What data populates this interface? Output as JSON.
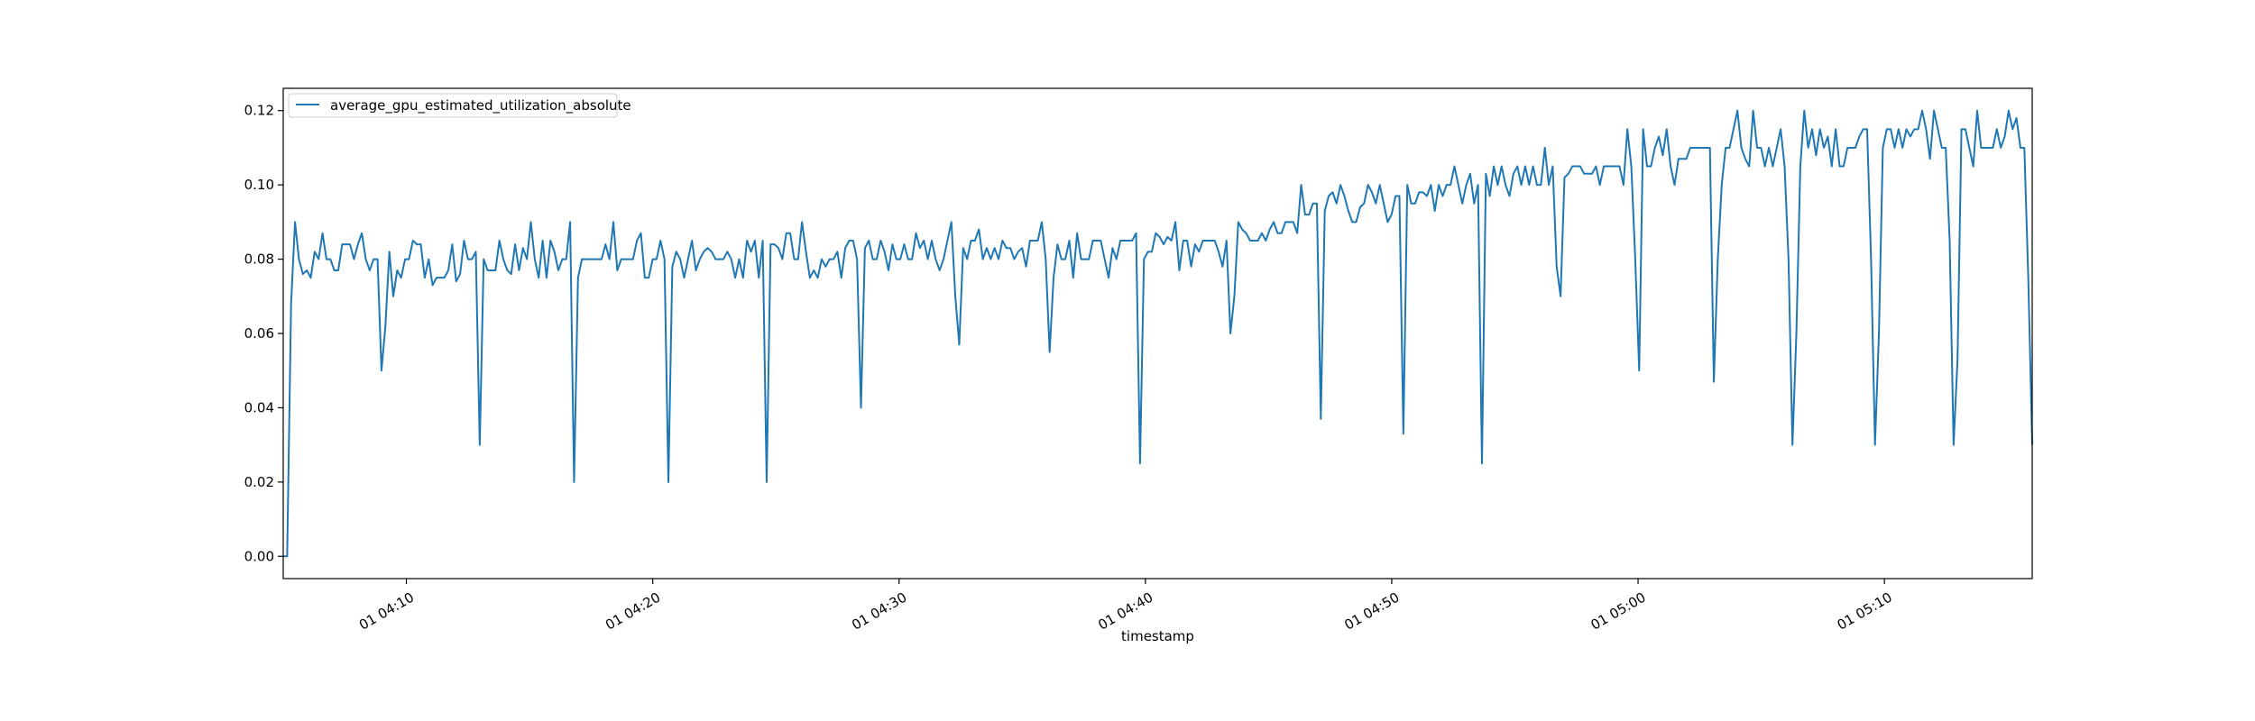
{
  "chart_data": {
    "type": "line",
    "title": "",
    "xlabel": "timestamp",
    "ylabel": "",
    "x_start": "01 04:05",
    "x_end": "01 05:16",
    "xlim": [
      "01 04:05",
      "01 05:16"
    ],
    "ylim": [
      -0.006,
      0.126
    ],
    "x_ticks": [
      "01 04:10",
      "01 04:20",
      "01 04:30",
      "01 04:40",
      "01 04:50",
      "01 05:00",
      "01 05:10"
    ],
    "y_ticks": [
      "0.00",
      "0.02",
      "0.04",
      "0.06",
      "0.08",
      "0.10",
      "0.12"
    ],
    "legend_position": "top-left",
    "grid": false,
    "line_color": "#1f77b4",
    "series": [
      {
        "name": "average_gpu_estimated_utilization_absolute",
        "values": [
          0.0,
          0.0,
          0.068,
          0.09,
          0.08,
          0.076,
          0.077,
          0.075,
          0.082,
          0.08,
          0.087,
          0.08,
          0.08,
          0.077,
          0.077,
          0.084,
          0.084,
          0.084,
          0.08,
          0.084,
          0.087,
          0.08,
          0.077,
          0.08,
          0.08,
          0.05,
          0.062,
          0.082,
          0.07,
          0.077,
          0.075,
          0.08,
          0.08,
          0.085,
          0.084,
          0.084,
          0.075,
          0.08,
          0.073,
          0.075,
          0.075,
          0.075,
          0.077,
          0.084,
          0.074,
          0.076,
          0.085,
          0.08,
          0.08,
          0.082,
          0.03,
          0.08,
          0.077,
          0.077,
          0.077,
          0.085,
          0.08,
          0.077,
          0.076,
          0.084,
          0.077,
          0.083,
          0.08,
          0.09,
          0.08,
          0.075,
          0.085,
          0.075,
          0.085,
          0.082,
          0.077,
          0.08,
          0.08,
          0.09,
          0.02,
          0.075,
          0.08,
          0.08,
          0.08,
          0.08,
          0.08,
          0.08,
          0.084,
          0.08,
          0.09,
          0.077,
          0.08,
          0.08,
          0.08,
          0.08,
          0.085,
          0.087,
          0.075,
          0.075,
          0.08,
          0.08,
          0.085,
          0.08,
          0.02,
          0.078,
          0.082,
          0.08,
          0.075,
          0.08,
          0.085,
          0.077,
          0.08,
          0.082,
          0.083,
          0.082,
          0.08,
          0.08,
          0.08,
          0.082,
          0.08,
          0.075,
          0.08,
          0.075,
          0.085,
          0.082,
          0.085,
          0.075,
          0.085,
          0.02,
          0.084,
          0.084,
          0.083,
          0.08,
          0.087,
          0.087,
          0.08,
          0.08,
          0.09,
          0.082,
          0.075,
          0.077,
          0.075,
          0.08,
          0.078,
          0.08,
          0.08,
          0.082,
          0.075,
          0.083,
          0.085,
          0.085,
          0.08,
          0.04,
          0.083,
          0.085,
          0.08,
          0.08,
          0.085,
          0.082,
          0.077,
          0.084,
          0.08,
          0.08,
          0.084,
          0.08,
          0.08,
          0.087,
          0.083,
          0.085,
          0.08,
          0.085,
          0.08,
          0.077,
          0.08,
          0.085,
          0.09,
          0.07,
          0.057,
          0.083,
          0.08,
          0.085,
          0.085,
          0.088,
          0.08,
          0.083,
          0.08,
          0.083,
          0.08,
          0.085,
          0.083,
          0.083,
          0.08,
          0.082,
          0.083,
          0.078,
          0.085,
          0.085,
          0.085,
          0.09,
          0.08,
          0.055,
          0.075,
          0.084,
          0.08,
          0.08,
          0.085,
          0.075,
          0.087,
          0.08,
          0.08,
          0.08,
          0.085,
          0.085,
          0.085,
          0.08,
          0.075,
          0.083,
          0.08,
          0.085,
          0.085,
          0.085,
          0.085,
          0.087,
          0.025,
          0.08,
          0.082,
          0.082,
          0.087,
          0.086,
          0.084,
          0.086,
          0.085,
          0.09,
          0.077,
          0.085,
          0.085,
          0.078,
          0.084,
          0.082,
          0.085,
          0.085,
          0.085,
          0.085,
          0.082,
          0.078,
          0.085,
          0.06,
          0.07,
          0.09,
          0.088,
          0.087,
          0.085,
          0.085,
          0.085,
          0.087,
          0.085,
          0.088,
          0.09,
          0.087,
          0.087,
          0.09,
          0.09,
          0.09,
          0.087,
          0.1,
          0.092,
          0.092,
          0.095,
          0.095,
          0.037,
          0.093,
          0.097,
          0.098,
          0.095,
          0.1,
          0.097,
          0.093,
          0.09,
          0.09,
          0.094,
          0.095,
          0.1,
          0.098,
          0.095,
          0.1,
          0.095,
          0.09,
          0.092,
          0.097,
          0.097,
          0.033,
          0.1,
          0.095,
          0.095,
          0.098,
          0.098,
          0.097,
          0.1,
          0.093,
          0.1,
          0.097,
          0.1,
          0.1,
          0.105,
          0.1,
          0.095,
          0.1,
          0.103,
          0.095,
          0.1,
          0.025,
          0.103,
          0.097,
          0.105,
          0.1,
          0.105,
          0.1,
          0.097,
          0.103,
          0.105,
          0.1,
          0.105,
          0.1,
          0.105,
          0.1,
          0.1,
          0.11,
          0.1,
          0.105,
          0.078,
          0.07,
          0.102,
          0.103,
          0.105,
          0.105,
          0.105,
          0.103,
          0.103,
          0.103,
          0.105,
          0.1,
          0.105,
          0.105,
          0.105,
          0.105,
          0.105,
          0.1,
          0.115,
          0.105,
          0.08,
          0.05,
          0.115,
          0.105,
          0.105,
          0.11,
          0.113,
          0.108,
          0.115,
          0.105,
          0.1,
          0.107,
          0.107,
          0.107,
          0.11,
          0.11,
          0.11,
          0.11,
          0.11,
          0.11,
          0.047,
          0.08,
          0.1,
          0.11,
          0.11,
          0.115,
          0.12,
          0.11,
          0.107,
          0.105,
          0.12,
          0.11,
          0.11,
          0.105,
          0.11,
          0.105,
          0.11,
          0.115,
          0.105,
          0.08,
          0.03,
          0.06,
          0.105,
          0.12,
          0.11,
          0.115,
          0.108,
          0.115,
          0.11,
          0.113,
          0.105,
          0.115,
          0.105,
          0.105,
          0.11,
          0.11,
          0.11,
          0.113,
          0.115,
          0.115,
          0.08,
          0.03,
          0.06,
          0.11,
          0.115,
          0.115,
          0.11,
          0.115,
          0.11,
          0.115,
          0.113,
          0.115,
          0.115,
          0.12,
          0.115,
          0.107,
          0.12,
          0.115,
          0.11,
          0.11,
          0.085,
          0.03,
          0.053,
          0.115,
          0.115,
          0.11,
          0.105,
          0.12,
          0.11,
          0.11,
          0.11,
          0.11,
          0.115,
          0.11,
          0.113,
          0.12,
          0.115,
          0.118,
          0.11,
          0.11,
          0.075,
          0.03
        ]
      }
    ]
  }
}
